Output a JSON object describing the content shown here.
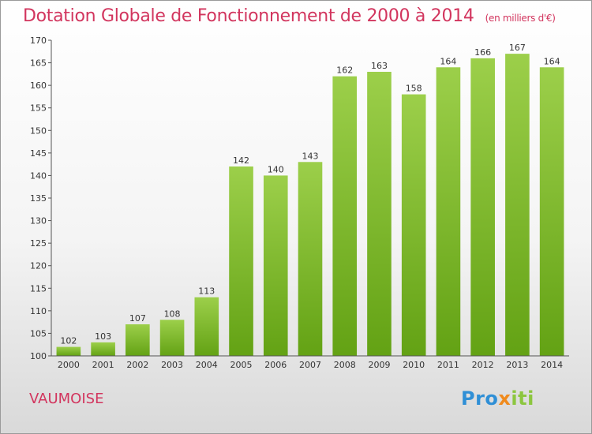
{
  "title": "Dotation Globale de Fonctionnement de 2000 à 2014",
  "unit_note": "(en milliers d'€)",
  "commune": "VAUMOISE",
  "logo": {
    "part1": "Pro",
    "part2": "x",
    "part3": "iti"
  },
  "colors": {
    "title": "#d2355e",
    "bar_top": "#9ccf4a",
    "bar_bottom": "#63a214"
  },
  "chart_data": {
    "type": "bar",
    "title": "Dotation Globale de Fonctionnement de 2000 à 2014",
    "ylabel": "",
    "xlabel": "",
    "ylim": [
      100,
      170
    ],
    "yticks": [
      100,
      105,
      110,
      115,
      120,
      125,
      130,
      135,
      140,
      145,
      150,
      155,
      160,
      165,
      170
    ],
    "grid": false,
    "categories": [
      "2000",
      "2001",
      "2002",
      "2003",
      "2004",
      "2005",
      "2006",
      "2007",
      "2008",
      "2009",
      "2010",
      "2011",
      "2012",
      "2013",
      "2014"
    ],
    "values": [
      102,
      103,
      107,
      108,
      113,
      142,
      140,
      143,
      162,
      163,
      158,
      164,
      166,
      167,
      164
    ]
  }
}
